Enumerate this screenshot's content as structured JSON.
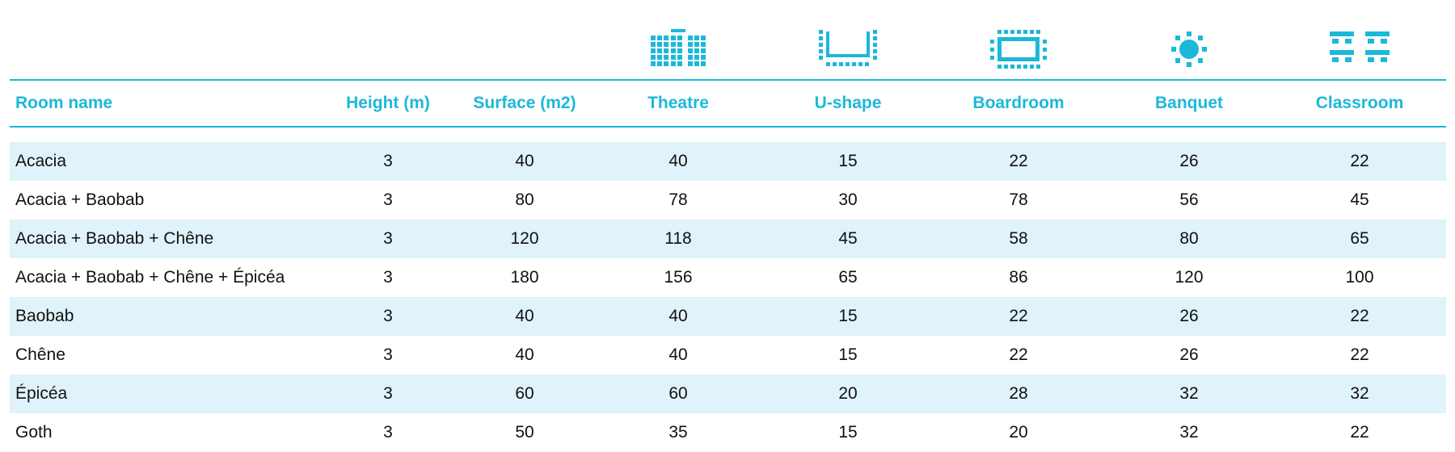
{
  "colors": {
    "accent": "#1cb8d8",
    "row_shade": "#e0f2fa",
    "text": "#111111"
  },
  "icons": [
    "theatre-icon",
    "u-shape-icon",
    "boardroom-icon",
    "banquet-icon",
    "classroom-icon"
  ],
  "headers": {
    "name": "Room name",
    "height": "Height (m)",
    "surface": "Surface (m2)",
    "theatre": "Theatre",
    "ushape": "U-shape",
    "boardroom": "Boardroom",
    "banquet": "Banquet",
    "classroom": "Classroom"
  },
  "rows": [
    {
      "name": "Acacia",
      "height": "3",
      "surface": "40",
      "theatre": "40",
      "ushape": "15",
      "boardroom": "22",
      "banquet": "26",
      "classroom": "22"
    },
    {
      "name": "Acacia + Baobab",
      "height": "3",
      "surface": "80",
      "theatre": "78",
      "ushape": "30",
      "boardroom": "78",
      "banquet": "56",
      "classroom": "45"
    },
    {
      "name": "Acacia + Baobab + Chêne",
      "height": "3",
      "surface": "120",
      "theatre": "118",
      "ushape": "45",
      "boardroom": "58",
      "banquet": "80",
      "classroom": "65"
    },
    {
      "name": "Acacia + Baobab + Chêne + Épicéa",
      "height": "3",
      "surface": "180",
      "theatre": "156",
      "ushape": "65",
      "boardroom": "86",
      "banquet": "120",
      "classroom": "100"
    },
    {
      "name": "Baobab",
      "height": "3",
      "surface": "40",
      "theatre": "40",
      "ushape": "15",
      "boardroom": "22",
      "banquet": "26",
      "classroom": "22"
    },
    {
      "name": "Chêne",
      "height": "3",
      "surface": "40",
      "theatre": "40",
      "ushape": "15",
      "boardroom": "22",
      "banquet": "26",
      "classroom": "22"
    },
    {
      "name": "Épicéa",
      "height": "3",
      "surface": "60",
      "theatre": "60",
      "ushape": "20",
      "boardroom": "28",
      "banquet": "32",
      "classroom": "32"
    },
    {
      "name": "Goth",
      "height": "3",
      "surface": "50",
      "theatre": "35",
      "ushape": "15",
      "boardroom": "20",
      "banquet": "32",
      "classroom": "22"
    }
  ]
}
